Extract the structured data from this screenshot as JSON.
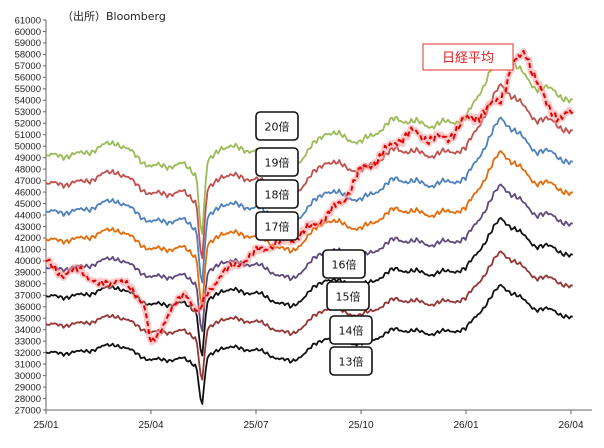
{
  "chart_data": {
    "type": "line",
    "source": "（出所）Bloomberg",
    "ylim": [
      27000,
      61000
    ],
    "yticks": [
      27000,
      28000,
      29000,
      30000,
      31000,
      32000,
      33000,
      34000,
      35000,
      36000,
      37000,
      38000,
      39000,
      40000,
      41000,
      42000,
      43000,
      44000,
      45000,
      46000,
      47000,
      48000,
      49000,
      50000,
      51000,
      52000,
      53000,
      54000,
      55000,
      56000,
      57000,
      58000,
      59000,
      60000,
      61000
    ],
    "xlim": [
      0,
      15.2
    ],
    "xticks": [
      {
        "pos": 0,
        "label": "25/01"
      },
      {
        "pos": 3,
        "label": "25/04"
      },
      {
        "pos": 6,
        "label": "25/07"
      },
      {
        "pos": 9,
        "label": "25/10"
      },
      {
        "pos": 12,
        "label": "26/01"
      },
      {
        "pos": 15,
        "label": "26/04"
      }
    ],
    "eps_months": [
      0,
      1,
      2,
      3,
      3.9,
      4.3,
      4.45,
      4.6,
      5,
      6,
      7,
      8,
      9,
      10,
      11,
      12,
      13,
      14,
      14.5,
      15
    ],
    "eps_values": [
      2455,
      2465,
      2520,
      2410,
      2420,
      2380,
      2085,
      2420,
      2500,
      2480,
      2395,
      2565,
      2515,
      2620,
      2590,
      2620,
      2915,
      2755,
      2745,
      2690
    ],
    "series": [
      {
        "name": "20倍",
        "multiple": 20,
        "color": "#9bbb59"
      },
      {
        "name": "19倍",
        "multiple": 19,
        "color": "#c0504d"
      },
      {
        "name": "18倍",
        "multiple": 18,
        "color": "#4f81bd"
      },
      {
        "name": "17倍",
        "multiple": 17,
        "color": "#e46c0a"
      },
      {
        "name": "16倍",
        "multiple": 16,
        "color": "#604a7b"
      },
      {
        "name": "15倍",
        "multiple": 15,
        "color": "#111111"
      },
      {
        "name": "14倍",
        "multiple": 14,
        "color": "#943634"
      },
      {
        "name": "13倍",
        "multiple": 13,
        "color": "#111111"
      }
    ],
    "nikkei": {
      "name": "日経平均",
      "color": "#e00000",
      "x": [
        0,
        0.5,
        1,
        1.5,
        2,
        2.5,
        2.8,
        3,
        3.2,
        3.5,
        4,
        4.35,
        4.45,
        4.6,
        5,
        5.5,
        6,
        6.5,
        7,
        7.5,
        8,
        8.5,
        9,
        9.5,
        10,
        10.5,
        11,
        11.5,
        12,
        12.5,
        13,
        13.3,
        13.7,
        14,
        14.3,
        14.7,
        15
      ],
      "values": [
        39900,
        38800,
        39300,
        37800,
        38400,
        37400,
        36300,
        32600,
        33500,
        35500,
        37200,
        35500,
        36000,
        37000,
        38900,
        39700,
        40800,
        41400,
        41800,
        42800,
        43900,
        45300,
        47900,
        48900,
        50500,
        51200,
        50600,
        50800,
        52300,
        52900,
        54200,
        56800,
        58300,
        55800,
        53600,
        52500,
        52800
      ]
    }
  }
}
